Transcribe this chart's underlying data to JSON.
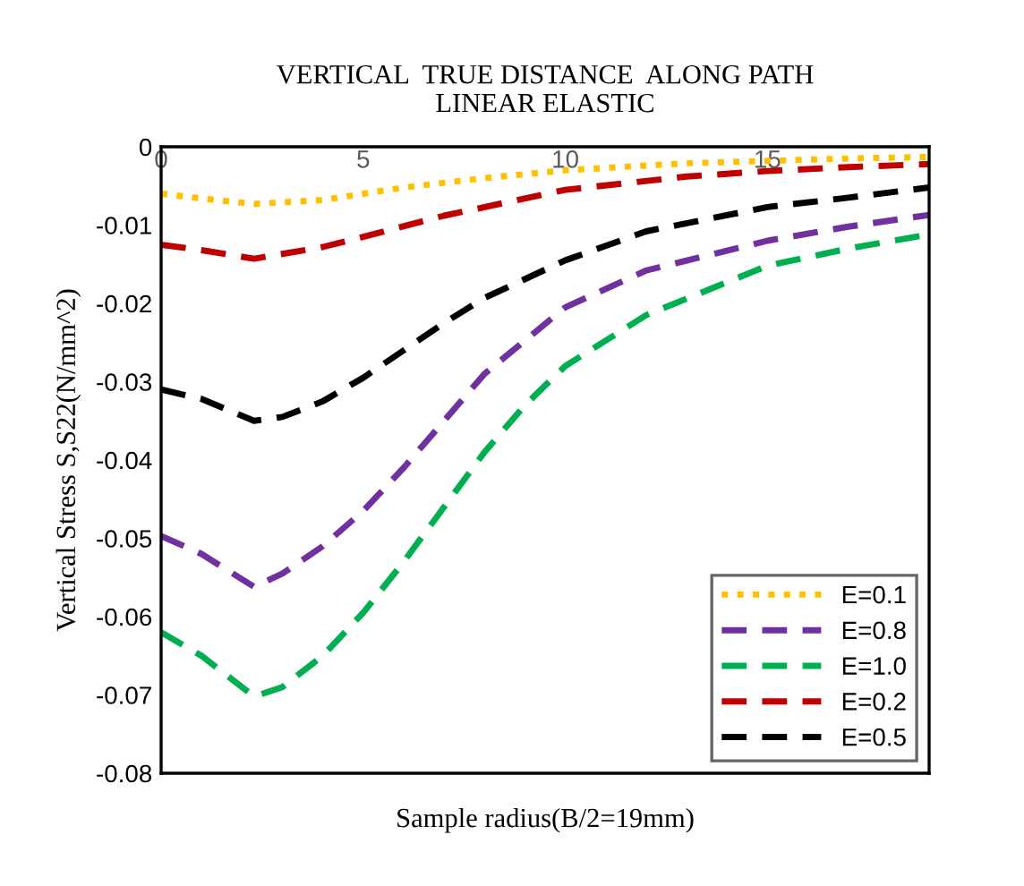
{
  "chart_data": {
    "type": "line",
    "title": "VERTICAL  TRUE DISTANCE  ALONG PATH\nLINEAR ELASTIC",
    "xlabel": "Sample radius(B/2=19mm)",
    "ylabel": "Vertical Stress S,S22(N/mm^2)",
    "xlim": [
      0,
      19
    ],
    "xticks": [
      0,
      5,
      10,
      15
    ],
    "ylim": [
      -0.08,
      0
    ],
    "yticks": [
      -0.08,
      -0.07,
      -0.06,
      -0.05,
      -0.04,
      -0.03,
      -0.02,
      -0.01,
      0
    ],
    "grid": false,
    "legend": "bottom right",
    "marker": "none",
    "series": [
      {
        "name": "E=0.1",
        "color": "#ffc000",
        "line_style": "dotted",
        "x": [
          0,
          1,
          2.3,
          4,
          5,
          6,
          8,
          10,
          13,
          15,
          17,
          19
        ],
        "values": [
          -0.006,
          -0.0066,
          -0.0073,
          -0.0068,
          -0.006,
          -0.0052,
          -0.004,
          -0.003,
          -0.0021,
          -0.0018,
          -0.0015,
          -0.0013
        ]
      },
      {
        "name": "E=0.8",
        "color": "#7030a0",
        "line_style": "dashed",
        "x": [
          0,
          1,
          2.3,
          3,
          4,
          5,
          6,
          7,
          8,
          10,
          12,
          15,
          17,
          19
        ],
        "values": [
          -0.0497,
          -0.052,
          -0.0562,
          -0.0545,
          -0.051,
          -0.0465,
          -0.041,
          -0.035,
          -0.029,
          -0.0205,
          -0.0158,
          -0.012,
          -0.0102,
          -0.0087
        ]
      },
      {
        "name": "E=1.0",
        "color": "#00b050",
        "line_style": "dashed",
        "x": [
          0,
          1,
          2.3,
          3,
          4,
          5,
          6,
          7,
          8,
          9,
          10,
          12,
          15,
          17,
          19
        ],
        "values": [
          -0.062,
          -0.065,
          -0.0702,
          -0.069,
          -0.065,
          -0.0595,
          -0.053,
          -0.046,
          -0.039,
          -0.033,
          -0.028,
          -0.0215,
          -0.0152,
          -0.013,
          -0.0112
        ]
      },
      {
        "name": "E=0.2",
        "color": "#c00000",
        "line_style": "dashed",
        "x": [
          0,
          1,
          2.3,
          4,
          5,
          7,
          10,
          13,
          15,
          17,
          19
        ],
        "values": [
          -0.0125,
          -0.0132,
          -0.0143,
          -0.0128,
          -0.0115,
          -0.0088,
          -0.0055,
          -0.0038,
          -0.0031,
          -0.0026,
          -0.0022
        ]
      },
      {
        "name": "E=0.5",
        "color": "#000000",
        "line_style": "dashed",
        "x": [
          0,
          1,
          2.3,
          3,
          4,
          5,
          6,
          7,
          8,
          10,
          12,
          15,
          17,
          19
        ],
        "values": [
          -0.031,
          -0.0322,
          -0.035,
          -0.0345,
          -0.0325,
          -0.0295,
          -0.026,
          -0.0225,
          -0.0193,
          -0.0145,
          -0.0108,
          -0.0077,
          -0.0065,
          -0.0052
        ]
      }
    ]
  }
}
